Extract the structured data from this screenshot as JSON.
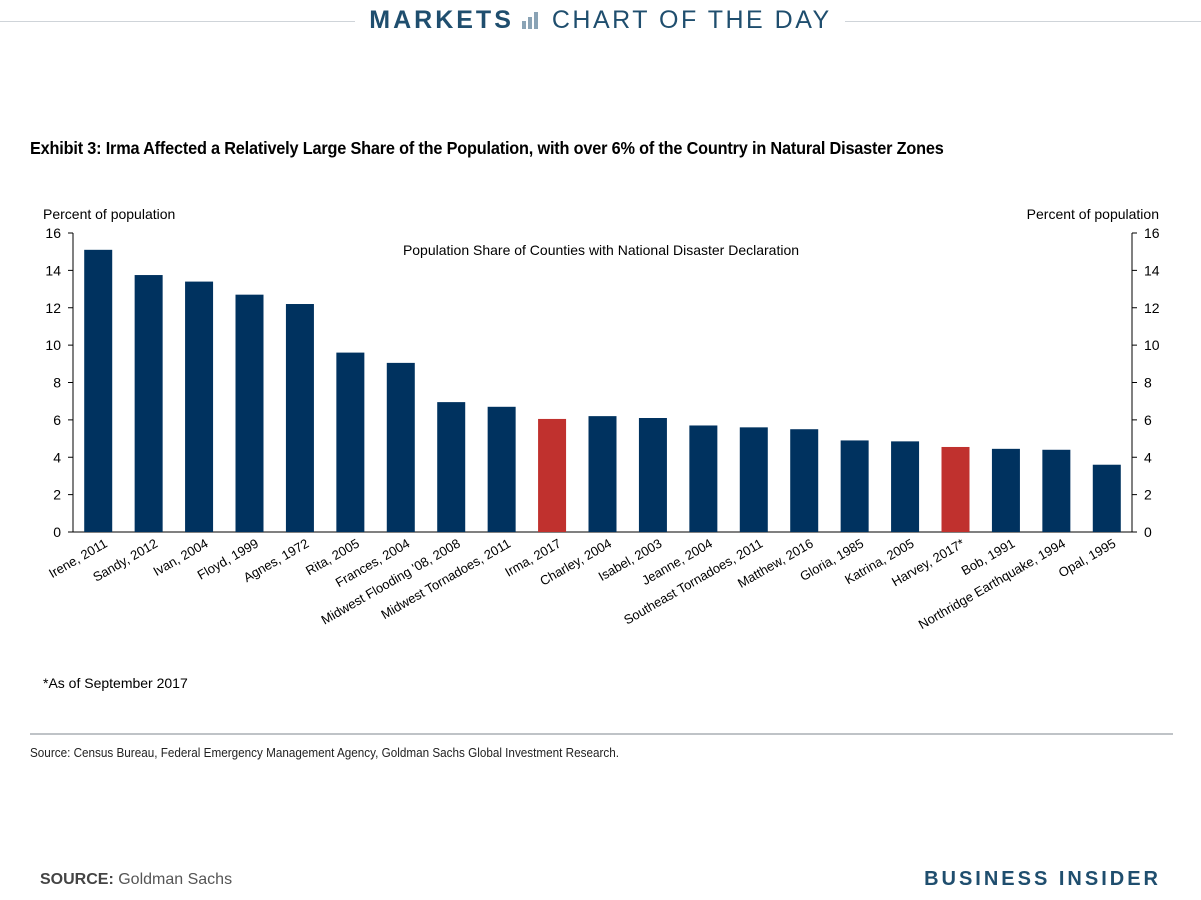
{
  "banner": {
    "markets": "MARKETS",
    "chart_of_the_day": "CHART OF THE DAY"
  },
  "exhibit_title": "Exhibit 3: Irma Affected a Relatively Large Share of the Population, with over 6% of the Country in Natural Disaster Zones",
  "footnote": "*As of September 2017",
  "source_note": "Source: Census Bureau, Federal Emergency Management Agency, Goldman Sachs Global Investment Research.",
  "footer": {
    "source_label": "SOURCE:",
    "source_value": "Goldman Sachs",
    "logo": "BUSINESS INSIDER"
  },
  "colors": {
    "bar": "#00325f",
    "highlight": "#c0312e",
    "brand": "#1f4e6e"
  },
  "chart_data": {
    "type": "bar",
    "title": "Population Share of Counties with National Disaster Declaration",
    "ylabel_left": "Percent of population",
    "ylabel_right": "Percent of population",
    "ylim": [
      0,
      16
    ],
    "yticks": [
      0,
      2,
      4,
      6,
      8,
      10,
      12,
      14,
      16
    ],
    "grid": false,
    "categories": [
      "Irene, 2011",
      "Sandy, 2012",
      "Ivan, 2004",
      "Floyd, 1999",
      "Agnes, 1972",
      "Rita, 2005",
      "Frances, 2004",
      "Midwest Flooding '08, 2008",
      "Midwest Tornadoes, 2011",
      "Irma, 2017",
      "Charley, 2004",
      "Isabel, 2003",
      "Jeanne, 2004",
      "Southeast Tornadoes, 2011",
      "Matthew, 2016",
      "Gloria, 1985",
      "Katrina, 2005",
      "Harvey, 2017*",
      "Bob, 1991",
      "Northridge Earthquake, 1994",
      "Opal, 1995"
    ],
    "values": [
      15.1,
      13.75,
      13.4,
      12.7,
      12.2,
      9.6,
      9.05,
      6.95,
      6.7,
      6.05,
      6.2,
      6.1,
      5.7,
      5.6,
      5.5,
      4.9,
      4.85,
      4.55,
      4.45,
      4.4,
      3.6
    ],
    "highlighted": [
      "Irma, 2017",
      "Harvey, 2017*"
    ]
  }
}
